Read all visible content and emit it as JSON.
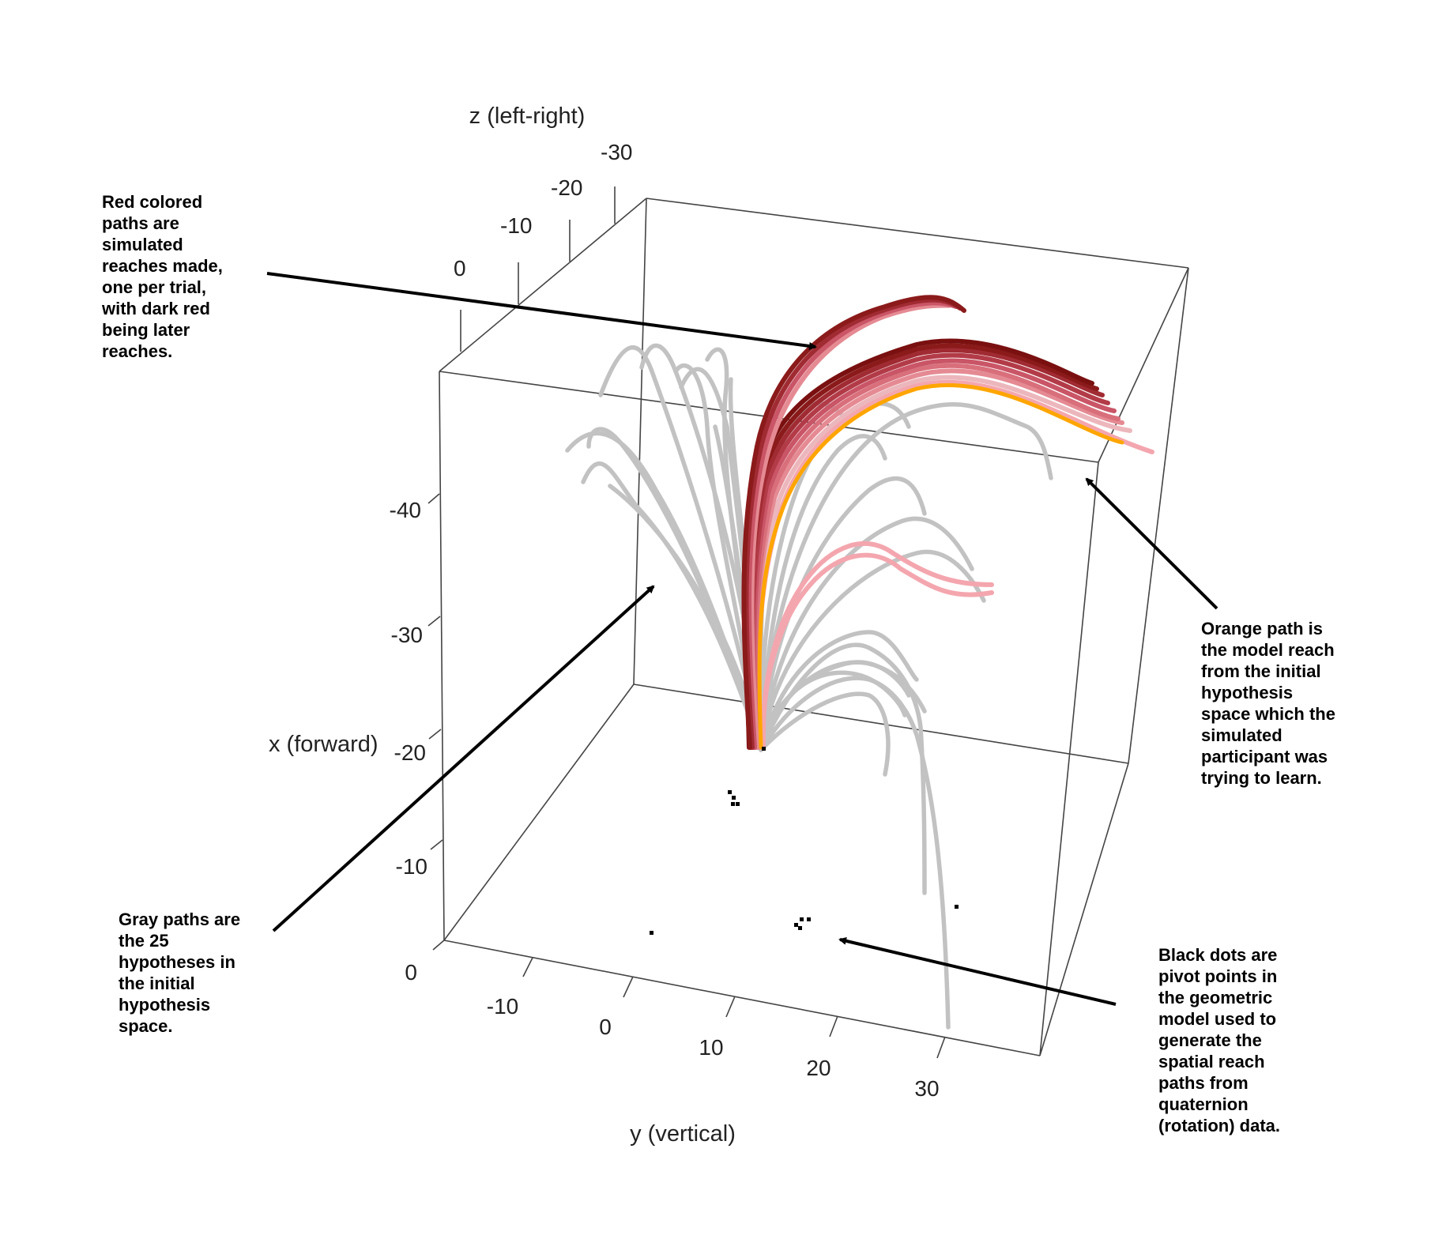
{
  "chart_data": {
    "type": "3d-line",
    "axes": {
      "z": {
        "label": "z (left-right)",
        "ticks": [
          "-30",
          "-20",
          "-10",
          "0"
        ]
      },
      "x": {
        "label": "x (forward)",
        "ticks": [
          "-40",
          "-30",
          "-20",
          "-10",
          "0"
        ]
      },
      "y": {
        "label": "y (vertical)",
        "ticks": [
          "-10",
          "0",
          "10",
          "20",
          "30"
        ]
      }
    },
    "series": [
      {
        "color": "#c2c2c2",
        "count": 25
      },
      {
        "color": "#8b1a1a"
      },
      {
        "color": "#f4a6ae"
      },
      {
        "color": "#ffa500"
      },
      {
        "color": "#000000"
      }
    ]
  },
  "annotations": [
    {
      "id": "red-paths-note",
      "text": "Red colored\npaths are\nsimulated\nreaches made,\none per trial,\nwith dark red\nbeing later\nreaches."
    },
    {
      "id": "orange-path-note",
      "text": "Orange path is\nthe model reach\nfrom the initial\nhypothesis\nspace which the\nsimulated\nparticipant was\ntrying to learn."
    },
    {
      "id": "gray-paths-note",
      "text": "Gray paths are\nthe 25\nhypotheses in\nthe initial\nhypothesis\nspace."
    },
    {
      "id": "black-dots-note",
      "text": "Black dots are\npivot points in\nthe geometric\nmodel used to\ngenerate the\nspatial reach\npaths from\nquaternion\n(rotation) data."
    }
  ]
}
